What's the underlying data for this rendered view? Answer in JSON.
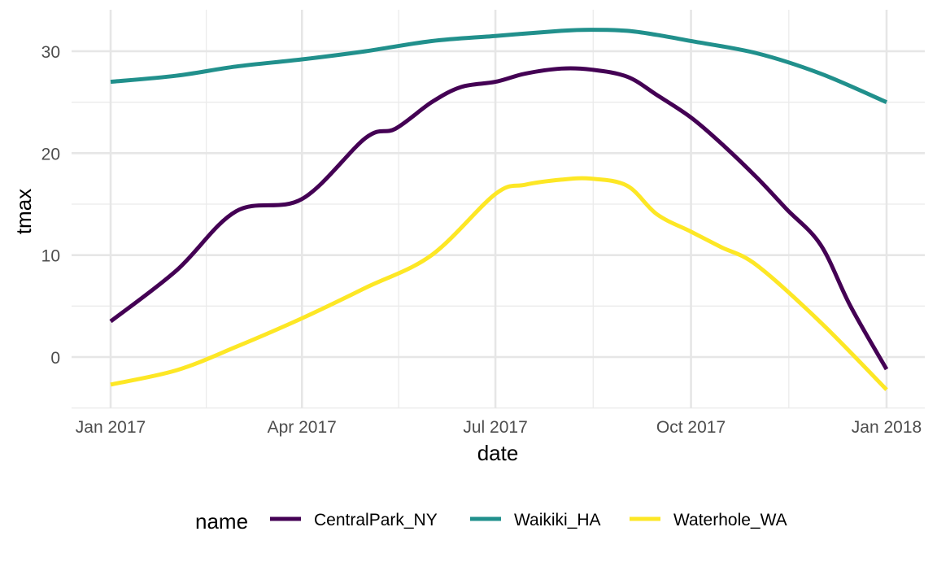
{
  "chart_data": {
    "type": "line",
    "title": "",
    "xlabel": "date",
    "ylabel": "tmax",
    "x_ticks": [
      "Jan 2017",
      "Apr 2017",
      "Jul 2017",
      "Oct 2017",
      "Jan 2018"
    ],
    "x_tick_dates": [
      "2017-01-01",
      "2017-04-01",
      "2017-07-01",
      "2017-10-01",
      "2018-01-01"
    ],
    "y_ticks": [
      0,
      10,
      20,
      30
    ],
    "xlim": [
      "2016-12-17",
      "2018-01-18"
    ],
    "ylim": [
      -5,
      34
    ],
    "grid": true,
    "legend": {
      "title": "name",
      "position": "bottom"
    },
    "series": [
      {
        "name": "CentralPark_NY",
        "color": "#440154",
        "x": [
          "2017-01-01",
          "2017-02-01",
          "2017-03-01",
          "2017-04-01",
          "2017-05-01",
          "2017-05-15",
          "2017-06-01",
          "2017-06-15",
          "2017-07-01",
          "2017-07-15",
          "2017-08-01",
          "2017-08-15",
          "2017-09-01",
          "2017-09-15",
          "2017-10-01",
          "2017-10-15",
          "2017-11-01",
          "2017-11-15",
          "2017-12-01",
          "2017-12-15",
          "2018-01-01"
        ],
        "values": [
          3.5,
          8.5,
          14.3,
          15.5,
          21.5,
          22.4,
          25.0,
          26.5,
          27.0,
          27.8,
          28.3,
          28.2,
          27.5,
          25.7,
          23.5,
          21.0,
          17.6,
          14.5,
          11.0,
          5.0,
          -1.2
        ]
      },
      {
        "name": "Waikiki_HA",
        "color": "#21908C",
        "x": [
          "2017-01-01",
          "2017-02-01",
          "2017-03-01",
          "2017-04-01",
          "2017-05-01",
          "2017-06-01",
          "2017-07-01",
          "2017-08-01",
          "2017-08-15",
          "2017-09-01",
          "2017-09-15",
          "2017-10-01",
          "2017-11-01",
          "2017-12-01",
          "2018-01-01"
        ],
        "values": [
          27.0,
          27.6,
          28.5,
          29.2,
          30.0,
          31.0,
          31.5,
          32.0,
          32.1,
          32.0,
          31.6,
          31.0,
          29.8,
          27.8,
          25.0
        ]
      },
      {
        "name": "Waterhole_WA",
        "color": "#FDE725",
        "x": [
          "2017-01-01",
          "2017-02-01",
          "2017-03-01",
          "2017-04-01",
          "2017-05-01",
          "2017-06-01",
          "2017-07-01",
          "2017-07-15",
          "2017-08-01",
          "2017-08-15",
          "2017-09-01",
          "2017-09-15",
          "2017-10-01",
          "2017-10-15",
          "2017-11-01",
          "2017-12-01",
          "2018-01-01"
        ],
        "values": [
          -2.7,
          -1.3,
          1.0,
          3.8,
          6.8,
          10.0,
          16.0,
          16.9,
          17.4,
          17.5,
          16.8,
          14.0,
          12.3,
          10.8,
          9.0,
          3.4,
          -3.2
        ]
      }
    ]
  }
}
